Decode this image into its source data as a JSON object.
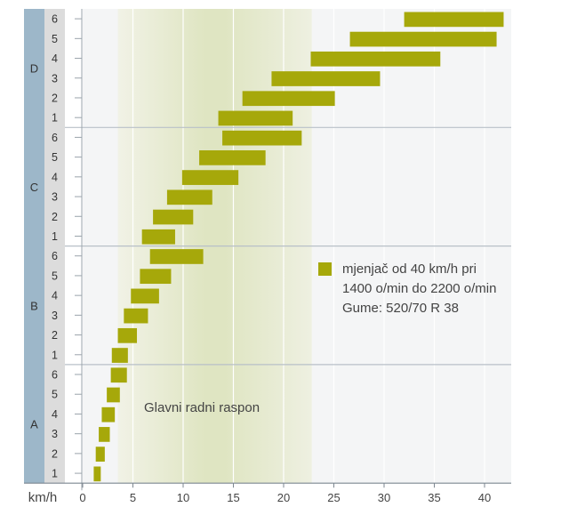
{
  "chart_data": {
    "type": "bar",
    "orientation": "horizontal-range",
    "x_unit_label": "km/h",
    "x_ticks": [
      0,
      5,
      10,
      15,
      20,
      25,
      30,
      35,
      40
    ],
    "xlim": [
      0,
      42
    ],
    "grid": "vertical",
    "groups": [
      {
        "name": "D",
        "gears": [
          "6",
          "5",
          "4",
          "3",
          "2",
          "1"
        ],
        "ranges": [
          [
            32.0,
            41.9
          ],
          [
            26.6,
            41.2
          ],
          [
            22.7,
            35.6
          ],
          [
            18.8,
            29.6
          ],
          [
            15.9,
            25.1
          ],
          [
            13.5,
            20.9
          ]
        ]
      },
      {
        "name": "C",
        "gears": [
          "6",
          "5",
          "4",
          "3",
          "2",
          "1"
        ],
        "ranges": [
          [
            13.9,
            21.8
          ],
          [
            11.6,
            18.2
          ],
          [
            9.9,
            15.5
          ],
          [
            8.4,
            12.9
          ],
          [
            7.0,
            11.0
          ],
          [
            5.9,
            9.2
          ]
        ]
      },
      {
        "name": "B",
        "gears": [
          "6",
          "5",
          "4",
          "3",
          "2",
          "1"
        ],
        "ranges": [
          [
            6.7,
            12.0
          ],
          [
            5.7,
            8.8
          ],
          [
            4.8,
            7.6
          ],
          [
            4.1,
            6.5
          ],
          [
            3.5,
            5.4
          ],
          [
            2.9,
            4.5
          ]
        ]
      },
      {
        "name": "A",
        "gears": [
          "6",
          "5",
          "4",
          "3",
          "2",
          "1"
        ],
        "ranges": [
          [
            2.8,
            4.4
          ],
          [
            2.4,
            3.7
          ],
          [
            1.9,
            3.2
          ],
          [
            1.6,
            2.7
          ],
          [
            1.3,
            2.2
          ],
          [
            1.1,
            1.8
          ]
        ]
      }
    ],
    "main_range": {
      "label": "Glavni radni raspon",
      "from": 3.5,
      "to": 22.8
    },
    "legend": {
      "lines": [
        "mjenjač od 40 km/h pri",
        "1400 o/min do 2200 o/min",
        "Gume: 520/70 R 38"
      ],
      "position": "right-middle"
    },
    "colors": {
      "bar": "#a6a80a",
      "band_center": "#dde3bf",
      "band_edge": "#eef0e1",
      "axis_strip_outer": "#9db7c9",
      "axis_strip_inner": "#dcdcdc",
      "grid": "#b8c0c8"
    }
  }
}
